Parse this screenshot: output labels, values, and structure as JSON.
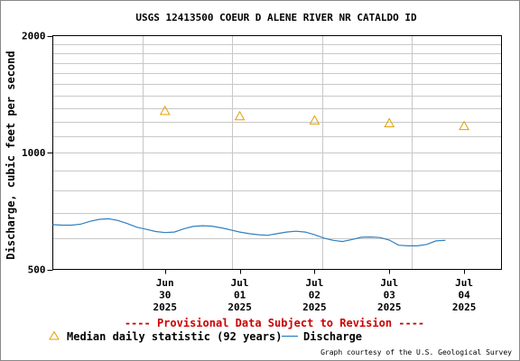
{
  "chart_data": {
    "type": "line",
    "title": "USGS 12413500 COEUR D ALENE RIVER NR CATALDO ID",
    "xlabel": "",
    "ylabel": "Discharge, cubic feet per second",
    "y_scale": "log",
    "ylim": [
      500,
      2000
    ],
    "y_ticks": [
      "500",
      "1000",
      "2000"
    ],
    "x_days": [
      "2025-06-29",
      "2025-07-04"
    ],
    "x_ticks": [
      {
        "date": "2025-06-30",
        "month": "Jun",
        "day": "30",
        "year": "2025"
      },
      {
        "date": "2025-07-01",
        "month": "Jul",
        "day": "01",
        "year": "2025"
      },
      {
        "date": "2025-07-02",
        "month": "Jul",
        "day": "02",
        "year": "2025"
      },
      {
        "date": "2025-07-03",
        "month": "Jul",
        "day": "03",
        "year": "2025"
      },
      {
        "date": "2025-07-04",
        "month": "Jul",
        "day": "04",
        "year": "2025"
      }
    ],
    "series": [
      {
        "name": "Discharge",
        "color": "#2f7fc1",
        "points": [
          [
            "2025-06-29 00:00",
            652
          ],
          [
            "2025-06-29 03:00",
            650
          ],
          [
            "2025-06-29 06:00",
            650
          ],
          [
            "2025-06-29 09:00",
            654
          ],
          [
            "2025-06-29 12:00",
            665
          ],
          [
            "2025-06-29 15:00",
            673
          ],
          [
            "2025-06-29 18:00",
            675
          ],
          [
            "2025-06-29 21:00",
            668
          ],
          [
            "2025-06-30 00:00",
            656
          ],
          [
            "2025-06-30 03:00",
            642
          ],
          [
            "2025-06-30 06:00",
            634
          ],
          [
            "2025-06-30 09:00",
            626
          ],
          [
            "2025-06-30 12:00",
            622
          ],
          [
            "2025-06-30 15:00",
            624
          ],
          [
            "2025-06-30 18:00",
            636
          ],
          [
            "2025-06-30 21:00",
            645
          ],
          [
            "2025-07-01 00:00",
            648
          ],
          [
            "2025-07-01 03:00",
            646
          ],
          [
            "2025-07-01 06:00",
            640
          ],
          [
            "2025-07-01 09:00",
            632
          ],
          [
            "2025-07-01 12:00",
            624
          ],
          [
            "2025-07-01 15:00",
            618
          ],
          [
            "2025-07-01 18:00",
            614
          ],
          [
            "2025-07-01 21:00",
            612
          ],
          [
            "2025-07-02 00:00",
            618
          ],
          [
            "2025-07-02 03:00",
            624
          ],
          [
            "2025-07-02 06:00",
            627
          ],
          [
            "2025-07-02 09:00",
            624
          ],
          [
            "2025-07-02 12:00",
            614
          ],
          [
            "2025-07-02 15:00",
            602
          ],
          [
            "2025-07-02 18:00",
            594
          ],
          [
            "2025-07-02 21:00",
            590
          ],
          [
            "2025-07-03 00:00",
            597
          ],
          [
            "2025-07-03 03:00",
            605
          ],
          [
            "2025-07-03 06:00",
            606
          ],
          [
            "2025-07-03 09:00",
            604
          ],
          [
            "2025-07-03 12:00",
            595
          ],
          [
            "2025-07-03 15:00",
            577
          ],
          [
            "2025-07-03 18:00",
            575
          ],
          [
            "2025-07-03 21:00",
            575
          ],
          [
            "2025-07-04 00:00",
            580
          ],
          [
            "2025-07-04 03:00",
            592
          ],
          [
            "2025-07-04 06:00",
            594
          ]
        ]
      },
      {
        "name": "Median daily statistic (92 years)",
        "color": "#e0a000",
        "marker": "triangle",
        "points": [
          [
            "2025-06-30",
            1280
          ],
          [
            "2025-07-01",
            1240
          ],
          [
            "2025-07-02",
            1210
          ],
          [
            "2025-07-03",
            1190
          ],
          [
            "2025-07-04",
            1170
          ]
        ]
      }
    ],
    "grid": true,
    "legend_position": "bottom-left"
  },
  "notice": "---- Provisional Data Subject to Revision ----",
  "credit": "Graph courtesy of the U.S. Geological Survey",
  "legend": {
    "median_label": "Median daily statistic (92 years)",
    "discharge_label": "Discharge"
  },
  "colors": {
    "notice": "#cc0000",
    "grid": "#c8c8c8",
    "axis": "#000000"
  }
}
